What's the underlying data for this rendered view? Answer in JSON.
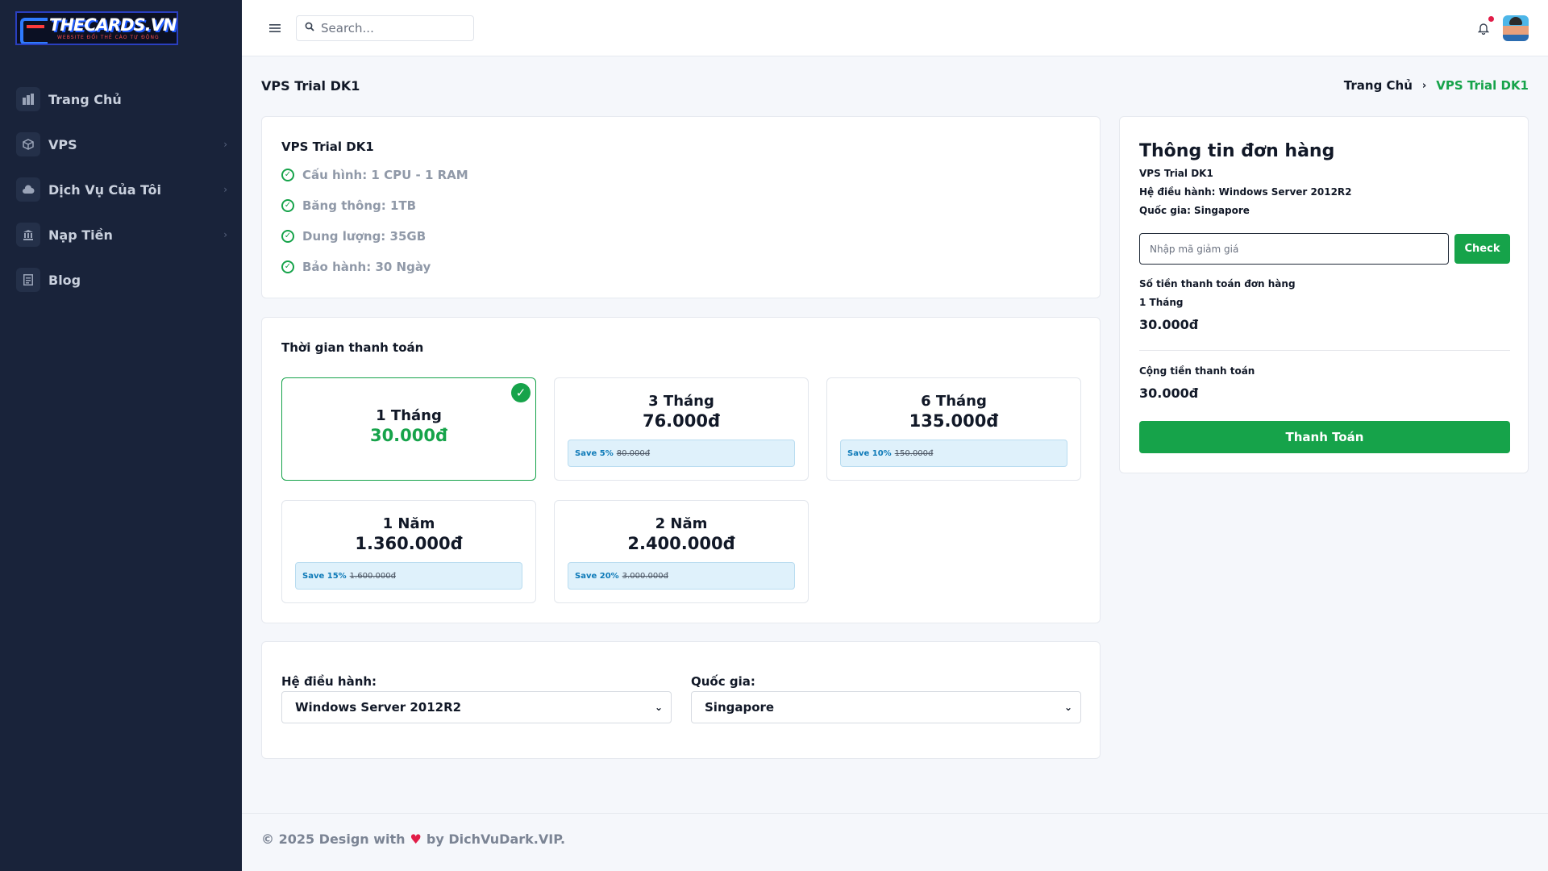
{
  "brand": {
    "logo_title": "THECARDS.VN",
    "logo_sub": "WEBSITE ĐỔI THẺ CÀO TỰ ĐỘNG"
  },
  "sidebar": {
    "items": [
      {
        "label": "Trang Chủ",
        "icon": "home-icon",
        "has_children": false
      },
      {
        "label": "VPS",
        "icon": "box-icon",
        "has_children": true
      },
      {
        "label": "Dịch Vụ Của Tôi",
        "icon": "cloud-icon",
        "has_children": true
      },
      {
        "label": "Nạp Tiền",
        "icon": "bank-icon",
        "has_children": true
      },
      {
        "label": "Blog",
        "icon": "article-icon",
        "has_children": false
      }
    ]
  },
  "topbar": {
    "search_placeholder": "Search..."
  },
  "page": {
    "title": "VPS Trial DK1",
    "breadcrumb_home": "Trang Chủ",
    "breadcrumb_current": "VPS Trial DK1"
  },
  "product": {
    "name": "VPS Trial DK1",
    "features": [
      "Cấu hình: 1 CPU - 1 RAM",
      "Băng thông: 1TB",
      "Dung lượng: 35GB",
      "Bảo hành: 30 Ngày"
    ]
  },
  "billing": {
    "title": "Thời gian thanh toán",
    "plans": [
      {
        "name": "1 Tháng",
        "price": "30.000đ",
        "save": "",
        "old_price": "",
        "selected": true
      },
      {
        "name": "3 Tháng",
        "price": "76.000đ",
        "save": "Save 5%",
        "old_price": "80.000đ",
        "selected": false
      },
      {
        "name": "6 Tháng",
        "price": "135.000đ",
        "save": "Save 10%",
        "old_price": "150.000đ",
        "selected": false
      },
      {
        "name": "1 Năm",
        "price": "1.360.000đ",
        "save": "Save 15%",
        "old_price": "1.600.000đ",
        "selected": false
      },
      {
        "name": "2 Năm",
        "price": "2.400.000đ",
        "save": "Save 20%",
        "old_price": "3.000.000đ",
        "selected": false
      }
    ]
  },
  "options": {
    "os_label": "Hệ điều hành:",
    "os_value": "Windows Server 2012R2",
    "country_label": "Quốc gia:",
    "country_value": "Singapore"
  },
  "order": {
    "title": "Thông tin đơn hàng",
    "product": "VPS Trial DK1",
    "os_line": "Hệ điều hành: Windows Server 2012R2",
    "country_line": "Quốc gia: Singapore",
    "coupon_placeholder": "Nhập mã giảm giá",
    "check_label": "Check",
    "amount_label": "Số tiền thanh toán đơn hàng",
    "period": "1 Tháng",
    "amount": "30.000đ",
    "total_label": "Cộng tiền thanh toán",
    "total": "30.000đ",
    "pay_label": "Thanh Toán"
  },
  "footer": {
    "prefix": "© 2025 Design with",
    "suffix": "by DichVuDark.VIP."
  },
  "colors": {
    "accent": "#16a34a",
    "sidebar_bg": "#19233a",
    "save_text": "#0e7ab8",
    "heart": "#e11d48"
  }
}
